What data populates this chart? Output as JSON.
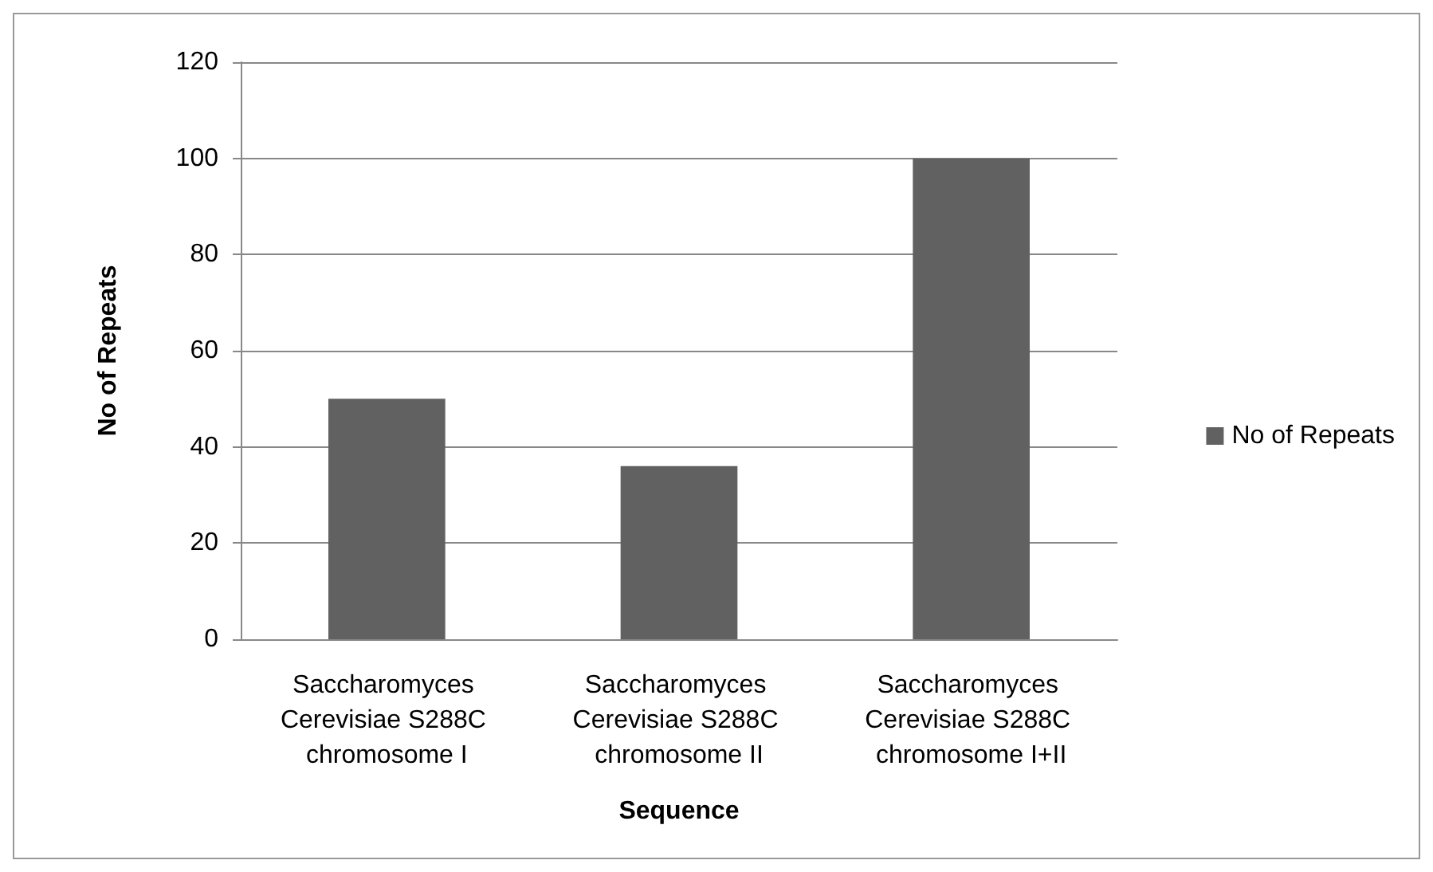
{
  "chart_data": {
    "type": "bar",
    "xlabel": "Sequence",
    "ylabel": "No of Repeats",
    "categories": [
      "Saccharomyces Cerevisiae S288C chromosome I",
      "Saccharomyces Cerevisiae S288C chromosome II",
      "Saccharomyces Cerevisiae S288C chromosome I+II"
    ],
    "series": [
      {
        "name": "No of Repeats",
        "color": "#616161",
        "values": [
          50,
          36,
          100
        ]
      }
    ],
    "ylim": [
      0,
      120
    ],
    "yticks": [
      0,
      20,
      40,
      60,
      80,
      100,
      120
    ],
    "grid": "y",
    "legend": "right"
  }
}
